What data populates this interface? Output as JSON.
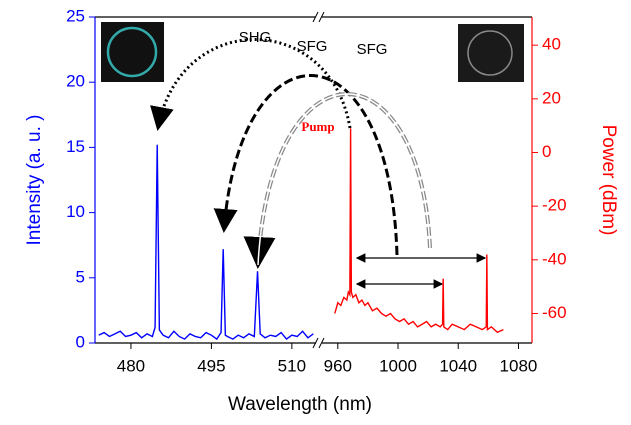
{
  "chart_data": {
    "type": "line",
    "x_label": "Wavelength (nm)",
    "y_label": "Intensity (a. u. )",
    "y2_label": "Power (dBm)",
    "x_segments": [
      {
        "xlim": [
          473.3,
          514.5
        ],
        "xticks": [
          480,
          495,
          510
        ]
      },
      {
        "xlim": [
          949.5,
          1089
        ],
        "xticks": [
          960,
          1000,
          1040,
          1080
        ]
      }
    ],
    "ylim": [
      0,
      25
    ],
    "yticks": [
      0,
      5,
      10,
      15,
      20,
      25
    ],
    "y2lim": [
      -71,
      50.5
    ],
    "y2ticks": [
      -60,
      -40,
      -20,
      0,
      20,
      40
    ],
    "annotations": [
      "SHG",
      "SFG",
      "SFG",
      "Pump"
    ],
    "series": [
      {
        "color": "#0000ff",
        "axis": "y",
        "x": [
          474,
          475,
          476,
          477,
          478,
          479,
          480,
          481,
          482,
          483,
          484,
          484.5,
          484.9,
          485.3,
          486,
          487,
          488,
          489,
          490,
          491,
          492,
          493,
          494,
          495,
          496,
          496.8,
          497.2,
          497.6,
          498,
          499,
          500,
          501,
          502,
          503,
          503.6,
          504.1,
          505,
          506,
          507,
          508,
          509,
          510,
          511,
          512,
          513,
          514
        ],
        "values": [
          0.6,
          0.8,
          0.5,
          0.7,
          0.9,
          0.5,
          0.6,
          0.8,
          0.4,
          0.7,
          0.5,
          1.2,
          15.2,
          1.0,
          0.6,
          0.4,
          0.9,
          0.5,
          0.3,
          0.7,
          0.5,
          0.4,
          0.8,
          0.6,
          0.3,
          0.8,
          7.2,
          0.6,
          0.5,
          0.3,
          0.6,
          0.4,
          0.7,
          0.5,
          5.5,
          0.7,
          0.4,
          0.6,
          0.5,
          0.8,
          0.3,
          0.6,
          0.5,
          0.9,
          0.4,
          0.7
        ]
      },
      {
        "color": "#ff0000",
        "axis": "y2",
        "x": [
          958,
          960,
          962,
          964,
          966,
          967,
          968,
          968.5,
          969,
          970,
          972,
          974,
          976,
          978,
          980,
          983,
          986,
          989,
          992,
          995,
          998,
          1001,
          1004,
          1007,
          1010,
          1013,
          1016,
          1019,
          1022,
          1025,
          1028,
          1029.6,
          1030,
          1030.4,
          1033,
          1036,
          1040,
          1044,
          1048,
          1052,
          1056,
          1058.6,
          1059,
          1059.4,
          1062,
          1066,
          1070
        ],
        "values": [
          -60,
          -56,
          -57,
          -54,
          -55,
          -52,
          -53,
          9,
          -52,
          -54,
          -53,
          -56,
          -55,
          -57,
          -56,
          -59,
          -58,
          -60,
          -61,
          -60,
          -62,
          -63,
          -62,
          -64,
          -63,
          -65,
          -64,
          -63,
          -65,
          -64,
          -65,
          -64,
          -47,
          -65,
          -66,
          -64,
          -65,
          -66,
          -64,
          -65,
          -66,
          -65,
          -38,
          -66,
          -65,
          -67,
          -66
        ]
      }
    ]
  }
}
